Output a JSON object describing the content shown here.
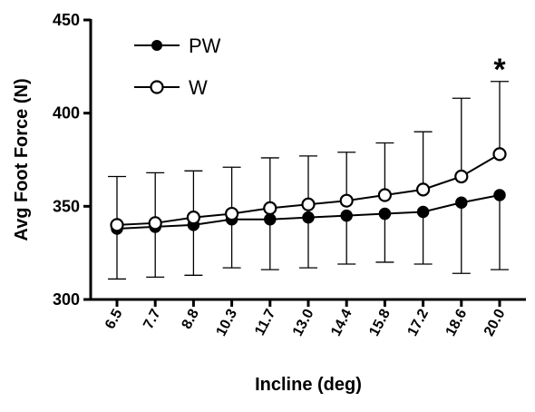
{
  "chart_data": {
    "type": "line",
    "xlabel": "Incline (deg)",
    "ylabel": "Avg Foot Force (N)",
    "ylim": [
      300,
      450
    ],
    "yticks": [
      300,
      350,
      400,
      450
    ],
    "categories": [
      "6.5",
      "7.7",
      "8.8",
      "10.3",
      "11.7",
      "13.0",
      "14.4",
      "15.8",
      "17.2",
      "18.6",
      "20.0"
    ],
    "series": [
      {
        "name": "PW",
        "marker": "filled-circle",
        "color": "#000000",
        "values": [
          338,
          339,
          340,
          343,
          343,
          344,
          345,
          346,
          347,
          352,
          356
        ],
        "error": [
          27,
          27,
          27,
          26,
          27,
          27,
          26,
          26,
          28,
          38,
          40
        ]
      },
      {
        "name": "W",
        "marker": "open-circle",
        "color": "#000000",
        "values": [
          340,
          341,
          344,
          346,
          349,
          351,
          353,
          356,
          359,
          366,
          378
        ],
        "error": [
          26,
          27,
          25,
          25,
          27,
          26,
          26,
          28,
          31,
          42,
          39
        ]
      }
    ],
    "annotations": [
      {
        "text": "*",
        "category": "20.0"
      }
    ],
    "legend_position": "top-left",
    "grid": false
  }
}
